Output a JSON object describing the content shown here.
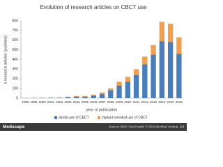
{
  "chart_data": {
    "type": "stacked-bar",
    "title": "Evolution of research articles on CBCT use",
    "y_label": "n research articles (pubmed)",
    "x_label": "year of publication",
    "categories": [
      "1998",
      "1999",
      "2000",
      "2001",
      "2002",
      "2003",
      "2004",
      "2005",
      "2006",
      "2007",
      "2008",
      "2009",
      "2010",
      "2011",
      "2012",
      "2013",
      "2014",
      "2015",
      "2016"
    ],
    "series": [
      {
        "name": "dental use of CBCT",
        "color": "#4a7ebb",
        "values": [
          2,
          3,
          3,
          4,
          5,
          10,
          15,
          15,
          25,
          45,
          80,
          130,
          170,
          240,
          350,
          450,
          590,
          580,
          460
        ]
      },
      {
        "name": "implant-oriented use of CBCT",
        "color": "#f0a050",
        "values": [
          1,
          1,
          1,
          1,
          2,
          5,
          8,
          8,
          10,
          15,
          20,
          40,
          50,
          60,
          80,
          100,
          200,
          190,
          170
        ]
      }
    ],
    "ylim": [
      0,
      800
    ],
    "yticks": [
      0,
      100,
      200,
      300,
      400,
      500,
      600,
      700,
      800
    ],
    "grid": false,
    "legend": "bottom"
  },
  "footer": {
    "brand": "Medscape",
    "source": "Source: BMC Oral Health © 2016 BioMed Central, Ltd"
  }
}
